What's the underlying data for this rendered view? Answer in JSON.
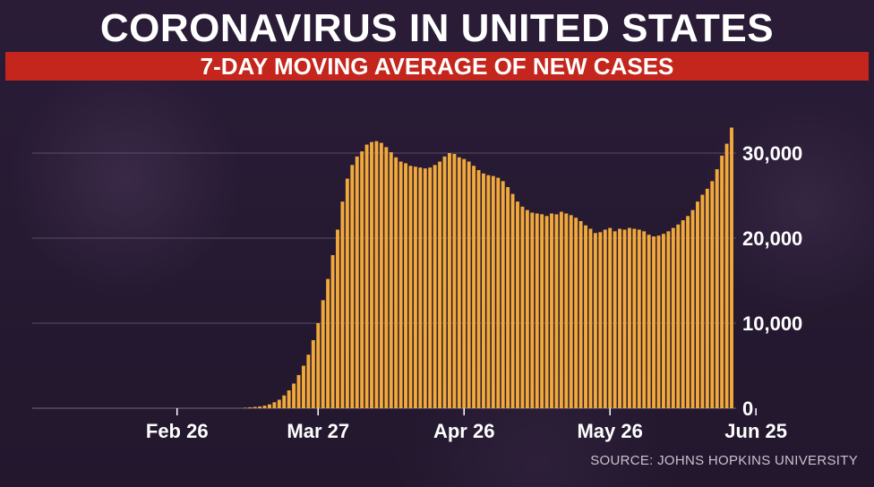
{
  "header": {
    "title": "CORONAVIRUS IN UNITED STATES",
    "subtitle": "7-DAY MOVING AVERAGE OF NEW CASES"
  },
  "footer": {
    "source": "SOURCE: JOHNS HOPKINS UNIVERSITY"
  },
  "colors": {
    "bar": "#f2a93b",
    "banner": "#c4251c",
    "grid": "#5a4c66",
    "text": "#ffffff"
  },
  "chart_data": {
    "type": "bar",
    "title": "7-DAY MOVING AVERAGE OF NEW CASES",
    "xlabel": "",
    "ylabel": "",
    "ylim": [
      0,
      33000
    ],
    "grid": true,
    "y_axis_side": "right",
    "y_ticks": [
      {
        "value": 0,
        "label": "0"
      },
      {
        "value": 10000,
        "label": "10,000"
      },
      {
        "value": 20000,
        "label": "20,000"
      },
      {
        "value": 30000,
        "label": "30,000"
      }
    ],
    "x_ticks": [
      {
        "index": 4,
        "label": "Feb 26"
      },
      {
        "index": 33,
        "label": "Mar 27"
      },
      {
        "index": 63,
        "label": "Apr 26"
      },
      {
        "index": 93,
        "label": "May 26"
      },
      {
        "index": 123,
        "label": "Jun 25"
      }
    ],
    "values": [
      0,
      0,
      0,
      0,
      0,
      0,
      0,
      0,
      0,
      0,
      0,
      0,
      0,
      0,
      0,
      0,
      0,
      0,
      50,
      100,
      150,
      200,
      300,
      450,
      700,
      1000,
      1500,
      2100,
      2900,
      3900,
      5000,
      6300,
      8000,
      10000,
      12700,
      15200,
      18000,
      21000,
      24300,
      27000,
      28600,
      29600,
      30200,
      31000,
      31300,
      31400,
      31200,
      30700,
      30100,
      29500,
      29000,
      28800,
      28500,
      28400,
      28300,
      28200,
      28300,
      28600,
      29000,
      29600,
      30000,
      29900,
      29500,
      29300,
      29000,
      28500,
      28000,
      27600,
      27400,
      27300,
      27100,
      26700,
      26000,
      25200,
      24300,
      23700,
      23300,
      23000,
      22900,
      22800,
      22600,
      22900,
      22800,
      23100,
      22900,
      22700,
      22400,
      22000,
      21500,
      21100,
      20600,
      20700,
      21000,
      21200,
      20800,
      21100,
      21000,
      21200,
      21100,
      21000,
      20800,
      20400,
      20200,
      20300,
      20500,
      20800,
      21200,
      21600,
      22100,
      22600,
      23300,
      24300,
      25100,
      25800,
      26700,
      28100,
      29700,
      31100,
      33000
    ]
  }
}
